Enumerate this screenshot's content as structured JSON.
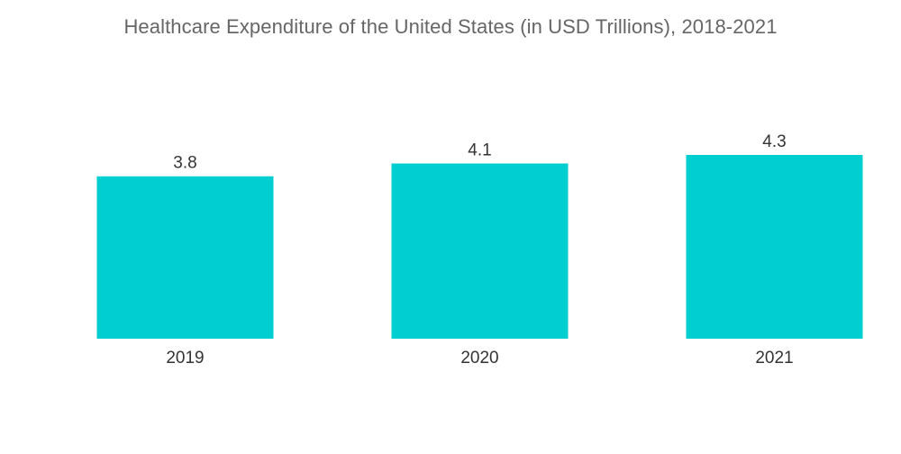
{
  "chart_data": {
    "type": "bar",
    "title": "Healthcare Expenditure of the United States (in USD Trillions), 2018-2021",
    "categories": [
      "2019",
      "2020",
      "2021"
    ],
    "values": [
      3.8,
      4.1,
      4.3
    ],
    "value_labels": [
      "3.8",
      "4.1",
      "4.3"
    ],
    "xlabel": "",
    "ylabel": "",
    "ylim": [
      0,
      4.3
    ],
    "bar_color": "#00CED1",
    "grid": false,
    "legend": "none",
    "y_axis_visible": false
  }
}
